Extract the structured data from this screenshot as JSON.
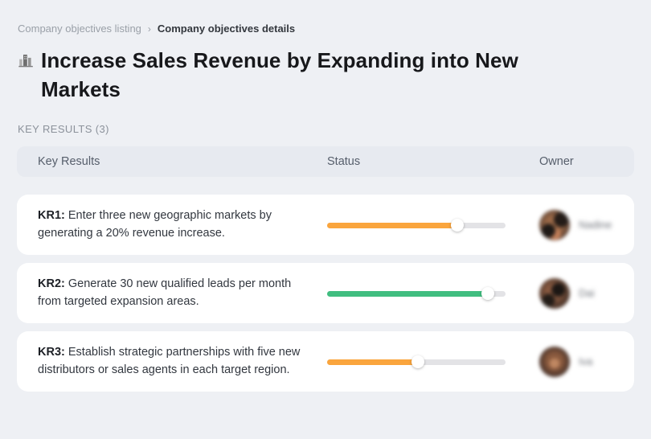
{
  "breadcrumb": {
    "separator": "›",
    "parent": "Company objectives listing",
    "current": "Company objectives details"
  },
  "page": {
    "title": "Increase Sales Revenue by Expanding into New Markets",
    "title_icon": "city-buildings-icon",
    "section_label": "KEY RESULTS (3)"
  },
  "table": {
    "headers": {
      "key_results": "Key Results",
      "status": "Status",
      "owner": "Owner"
    },
    "rows": [
      {
        "label": "KR1:",
        "text": "Enter three new geographic markets by generating a 20% revenue increase.",
        "progress_percent": 73,
        "progress_color": "#FAA53D",
        "owner_name": "Nadine"
      },
      {
        "label": "KR2:",
        "text": "Generate 30 new qualified leads per month from targeted expansion areas.",
        "progress_percent": 90,
        "progress_color": "#41BE80",
        "owner_name": "Dai"
      },
      {
        "label": "KR3:",
        "text": "Establish strategic partnerships with five new distributors or sales agents in each target region.",
        "progress_percent": 51,
        "progress_color": "#FAA53D",
        "owner_name": "Iva"
      }
    ]
  },
  "colors": {
    "page_background": "#EEF0F4",
    "card_background": "#FFFFFF",
    "header_bar_background": "#E7EAF0",
    "progress_track": "#E3E3E6",
    "accent_orange": "#FAA53D",
    "accent_green": "#41BE80"
  }
}
